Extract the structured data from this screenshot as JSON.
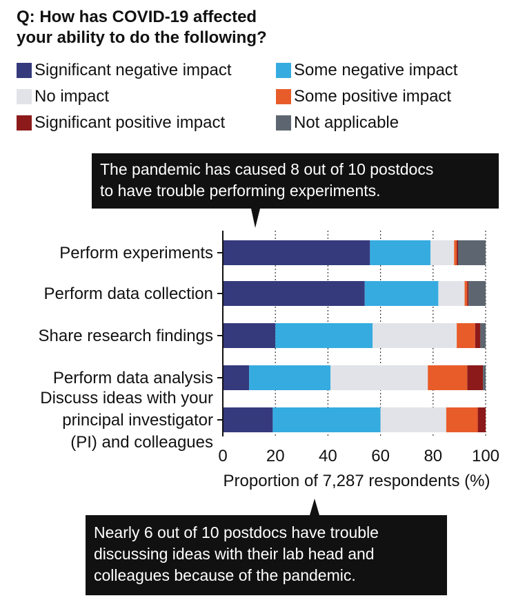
{
  "title_line1": "Q: How has COVID-19 affected",
  "title_line2": "your ability to do the following?",
  "callout_top": {
    "line1": "The pandemic has caused 8 out of 10 postdocs",
    "line2": "to have trouble performing experiments."
  },
  "callout_bottom": {
    "line1": "Nearly 6 out of 10 postdocs have trouble",
    "line2": "discussing ideas with their lab head and",
    "line3": "colleagues because of the pandemic."
  },
  "colors": {
    "significant_negative": "#353a7d",
    "some_negative": "#36abe0",
    "no_impact": "#e1e3e8",
    "some_positive": "#e85c2a",
    "significant_positive": "#8c1a1a",
    "not_applicable": "#5d6670"
  },
  "chart_data": {
    "type": "bar",
    "orientation": "horizontal",
    "stacked": true,
    "categories": [
      [
        "Perform experiments"
      ],
      [
        "Perform data collection"
      ],
      [
        "Share research findings"
      ],
      [
        "Perform data analysis"
      ],
      [
        "Discuss ideas with your",
        "principal investigator",
        "(PI) and colleagues"
      ]
    ],
    "series": [
      {
        "name": "Significant negative impact",
        "values": [
          56,
          54,
          20,
          10,
          19
        ]
      },
      {
        "name": "Some negative impact",
        "values": [
          23,
          28,
          37,
          31,
          41
        ]
      },
      {
        "name": "No impact",
        "values": [
          9,
          10,
          32,
          37,
          25
        ]
      },
      {
        "name": "Some positive impact",
        "values": [
          1,
          1,
          7,
          15,
          12
        ]
      },
      {
        "name": "Significant positive impact",
        "values": [
          0.5,
          0.5,
          2,
          6,
          3
        ]
      },
      {
        "name": "Not applicable",
        "values": [
          10.5,
          6.5,
          2,
          1,
          0
        ]
      }
    ],
    "xlabel": "Proportion of 7,287 respondents (%)",
    "xlim": [
      0,
      100
    ],
    "xticks": [
      0,
      20,
      40,
      60,
      80,
      100
    ],
    "grid": "dotted vertical",
    "legend_position": "top"
  }
}
